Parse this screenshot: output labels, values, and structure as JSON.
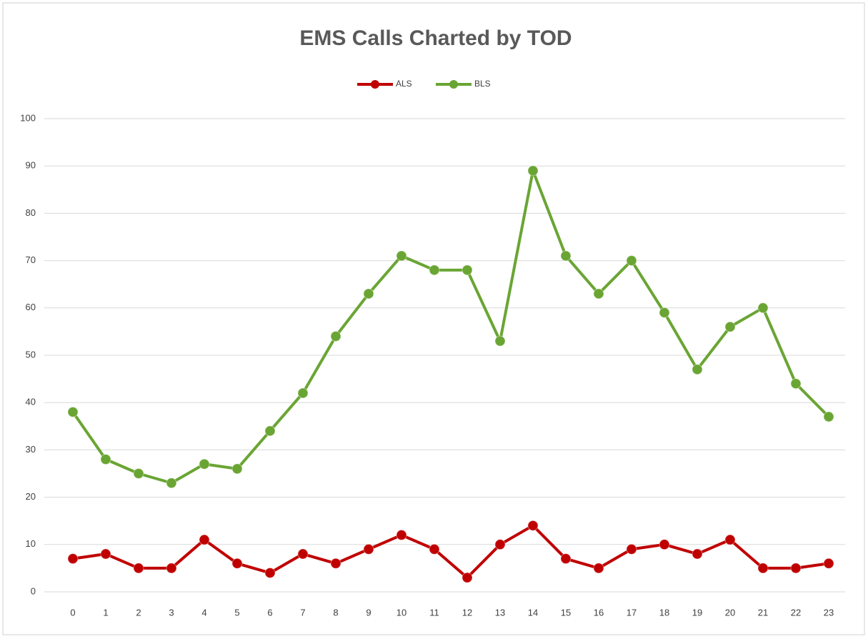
{
  "chart_data": {
    "type": "line",
    "title": "EMS Calls Charted by TOD",
    "categories": [
      "0",
      "1",
      "2",
      "3",
      "4",
      "5",
      "6",
      "7",
      "8",
      "9",
      "10",
      "11",
      "12",
      "13",
      "14",
      "15",
      "16",
      "17",
      "18",
      "19",
      "20",
      "21",
      "22",
      "23"
    ],
    "series": [
      {
        "name": "ALS",
        "color": "#c00000",
        "values": [
          7,
          8,
          5,
          5,
          11,
          6,
          4,
          8,
          6,
          9,
          12,
          9,
          3,
          10,
          14,
          7,
          5,
          9,
          10,
          8,
          11,
          5,
          5,
          6
        ]
      },
      {
        "name": "BLS",
        "color": "#6aa534",
        "values": [
          38,
          28,
          25,
          23,
          27,
          26,
          34,
          42,
          54,
          63,
          71,
          68,
          68,
          53,
          89,
          71,
          63,
          70,
          59,
          47,
          56,
          60,
          44,
          37
        ]
      }
    ],
    "ylim": [
      0,
      100
    ],
    "yticks": [
      0,
      10,
      20,
      30,
      40,
      50,
      60,
      70,
      80,
      90,
      100
    ],
    "grid": true,
    "legend": "top"
  }
}
